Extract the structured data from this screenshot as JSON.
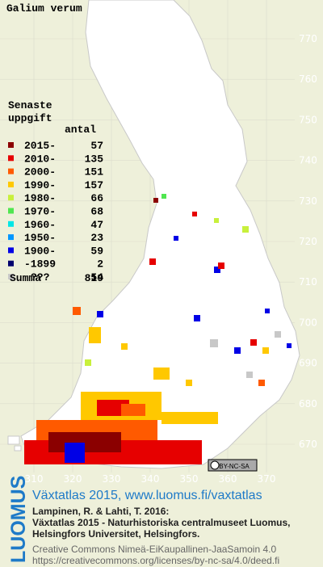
{
  "title": "Galium verum",
  "legend": {
    "heading": [
      "Senaste",
      "uppgift"
    ],
    "count_heading": "antal",
    "items": [
      {
        "label": "2015-",
        "count": 57,
        "color": "#8b0000"
      },
      {
        "label": "2010-",
        "count": 135,
        "color": "#e60000"
      },
      {
        "label": "2000-",
        "count": 151,
        "color": "#ff5a00"
      },
      {
        "label": "1990-",
        "count": 157,
        "color": "#ffc800"
      },
      {
        "label": "1980-",
        "count": 66,
        "color": "#c8f03c"
      },
      {
        "label": "1970-",
        "count": 68,
        "color": "#50e650"
      },
      {
        "label": "1960-",
        "count": 47,
        "color": "#00e6e6"
      },
      {
        "label": "1950-",
        "count": 23,
        "color": "#0096ff"
      },
      {
        "label": "1900-",
        "count": 59,
        "color": "#0000e6"
      },
      {
        "label": "-1899",
        "count": 2,
        "color": "#00006e"
      },
      {
        "label": "???",
        "count": 54,
        "color": "#c8c8c8"
      }
    ],
    "total_label": "Summa",
    "total": 819
  },
  "x_ticks": [
    310,
    320,
    330,
    340,
    350,
    360,
    370
  ],
  "y_ticks": [
    670,
    680,
    690,
    700,
    710,
    720,
    730,
    740,
    750,
    760,
    770
  ],
  "license_badge": "BY-NC-SA",
  "footer": {
    "logo": "LUOMUS",
    "headline": "Växtatlas 2015, www.luomus.fi/vaxtatlas",
    "citation": [
      "Lampinen, R. & Lahti, T. 2016:",
      "Växtatlas 2015 - Naturhistoriska centralmuseet Luomus,",
      "Helsingfors Universitet, Helsingfors."
    ],
    "license": [
      "Creative Commons Nimeä-EiKaupallinen-JaaSamoin 4.0",
      "https://creativecommons.org/licenses/by-nc-sa/4.0/deed.fi"
    ]
  }
}
